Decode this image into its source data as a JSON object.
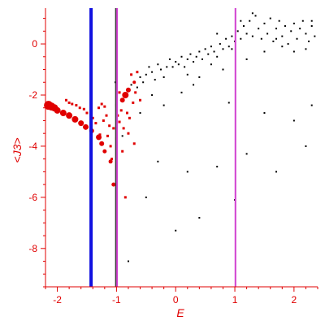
{
  "chart_data": {
    "type": "scatter",
    "title": "",
    "xlabel": "E",
    "ylabel": "<J3>",
    "xlim": [
      -2.2,
      2.4
    ],
    "ylim": [
      -9.5,
      1.4
    ],
    "grid": false,
    "axis_color": "#e00000",
    "x_ticks": [
      {
        "value": -2,
        "label": "-2"
      },
      {
        "value": -1,
        "label": "-1"
      },
      {
        "value": 0,
        "label": "0"
      },
      {
        "value": 1,
        "label": "1"
      },
      {
        "value": 2,
        "label": "2"
      }
    ],
    "y_ticks": [
      {
        "value": 0,
        "label": "0"
      },
      {
        "value": -2,
        "label": "-2"
      },
      {
        "value": -4,
        "label": "-4"
      },
      {
        "value": -6,
        "label": "-6"
      },
      {
        "value": -8,
        "label": "-8"
      }
    ],
    "vertical_lines": [
      {
        "x": -1.43,
        "color": "#1010e0"
      },
      {
        "x": -1.01,
        "color": "#3a3a3a"
      },
      {
        "x": -0.99,
        "color": "#d040d0"
      },
      {
        "x": 1.01,
        "color": "#d040d0"
      }
    ],
    "red_circles": [
      [
        -2.15,
        -2.4,
        5.5
      ],
      [
        -2.1,
        -2.45,
        5
      ],
      [
        -2.05,
        -2.5,
        4.5
      ],
      [
        -2.0,
        -2.6,
        4
      ],
      [
        -1.9,
        -2.7,
        4
      ],
      [
        -1.8,
        -2.8,
        4
      ],
      [
        -1.7,
        -2.95,
        4
      ],
      [
        -1.6,
        -3.1,
        3.5
      ],
      [
        -1.52,
        -3.25,
        3.5
      ],
      [
        -1.42,
        -3.4,
        3
      ],
      [
        -1.3,
        -3.65,
        3.5
      ],
      [
        -1.25,
        -3.9,
        3
      ],
      [
        -1.2,
        -4.2,
        2.5
      ],
      [
        -1.1,
        -4.6,
        2.5
      ],
      [
        -1.05,
        -5.5,
        2.5
      ],
      [
        -0.9,
        -2.2,
        3
      ],
      [
        -0.85,
        -2.0,
        4
      ],
      [
        -0.8,
        -1.8,
        3
      ],
      [
        -0.7,
        -1.5,
        2
      ]
    ],
    "red_squares": [
      [
        -1.85,
        -2.2
      ],
      [
        -1.8,
        -2.3
      ],
      [
        -1.75,
        -2.35
      ],
      [
        -1.68,
        -2.4
      ],
      [
        -1.62,
        -2.5
      ],
      [
        -1.55,
        -2.55
      ],
      [
        -1.5,
        -2.7
      ],
      [
        -1.4,
        -2.9
      ],
      [
        -1.35,
        -3.1
      ],
      [
        -1.3,
        -2.5
      ],
      [
        -1.25,
        -2.35
      ],
      [
        -1.2,
        -2.45
      ],
      [
        -1.15,
        -3.6
      ],
      [
        -1.12,
        -3.2
      ],
      [
        -1.1,
        -4.0
      ],
      [
        -1.05,
        -3.3
      ],
      [
        -1.0,
        -3.7
      ],
      [
        -0.98,
        -2.8
      ],
      [
        -0.95,
        -3.05
      ],
      [
        -0.92,
        -2.6
      ],
      [
        -0.88,
        -3.3
      ],
      [
        -0.82,
        -2.7
      ],
      [
        -0.8,
        -3.5
      ],
      [
        -0.78,
        -2.9
      ],
      [
        -0.75,
        -1.2
      ],
      [
        -0.72,
        -2.3
      ],
      [
        -0.7,
        -3.9
      ],
      [
        -0.68,
        -1.9
      ],
      [
        -0.65,
        -1.1
      ],
      [
        -0.6,
        -2.2
      ],
      [
        -0.95,
        -1.9
      ],
      [
        -1.08,
        -4.5
      ],
      [
        -0.85,
        -6.0
      ],
      [
        -1.28,
        -3.55
      ],
      [
        -1.22,
        -3.0
      ],
      [
        -0.9,
        -4.2
      ],
      [
        -1.17,
        -2.8
      ],
      [
        -1.0,
        -2.4
      ]
    ],
    "black_points": [
      [
        -1.02,
        -1.5
      ],
      [
        -1.0,
        -4.8
      ],
      [
        -0.9,
        -3.6
      ],
      [
        -0.75,
        -1.6
      ],
      [
        -0.65,
        -1.7
      ],
      [
        -0.6,
        -1.3
      ],
      [
        -0.55,
        -1.5
      ],
      [
        -0.5,
        -1.2
      ],
      [
        -0.45,
        -0.9
      ],
      [
        -0.4,
        -1.1
      ],
      [
        -0.35,
        -1.4
      ],
      [
        -0.3,
        -0.8
      ],
      [
        -0.25,
        -1.0
      ],
      [
        -0.2,
        -1.3
      ],
      [
        -0.15,
        -0.9
      ],
      [
        -0.1,
        -0.6
      ],
      [
        -0.05,
        -0.9
      ],
      [
        0.0,
        -0.7
      ],
      [
        0.05,
        -0.8
      ],
      [
        0.1,
        -0.5
      ],
      [
        0.15,
        -0.9
      ],
      [
        0.2,
        -0.6
      ],
      [
        0.25,
        -0.4
      ],
      [
        0.3,
        -0.7
      ],
      [
        0.35,
        -0.5
      ],
      [
        0.4,
        -0.3
      ],
      [
        0.45,
        -0.6
      ],
      [
        0.5,
        -0.2
      ],
      [
        0.55,
        -0.4
      ],
      [
        0.6,
        -0.1
      ],
      [
        0.65,
        -0.3
      ],
      [
        0.7,
        -0.5
      ],
      [
        0.75,
        0.0
      ],
      [
        0.8,
        -0.2
      ],
      [
        0.85,
        0.2
      ],
      [
        0.9,
        -0.1
      ],
      [
        0.95,
        0.3
      ],
      [
        1.0,
        0.1
      ],
      [
        1.05,
        0.5
      ],
      [
        1.1,
        0.2
      ],
      [
        1.15,
        0.7
      ],
      [
        1.2,
        0.4
      ],
      [
        1.25,
        0.9
      ],
      [
        1.3,
        0.3
      ],
      [
        1.35,
        1.1
      ],
      [
        1.4,
        0.6
      ],
      [
        1.45,
        0.2
      ],
      [
        1.5,
        0.8
      ],
      [
        1.55,
        0.4
      ],
      [
        1.6,
        1.0
      ],
      [
        1.65,
        0.1
      ],
      [
        1.7,
        0.6
      ],
      [
        1.75,
        0.9
      ],
      [
        1.8,
        0.3
      ],
      [
        1.85,
        0.7
      ],
      [
        1.9,
        0.0
      ],
      [
        1.95,
        0.5
      ],
      [
        2.0,
        0.8
      ],
      [
        2.05,
        0.2
      ],
      [
        2.1,
        0.6
      ],
      [
        2.15,
        0.9
      ],
      [
        2.2,
        0.4
      ],
      [
        2.25,
        0.1
      ],
      [
        2.3,
        0.7
      ],
      [
        2.35,
        0.3
      ],
      [
        0.2,
        -1.2
      ],
      [
        0.4,
        -1.3
      ],
      [
        0.6,
        -0.8
      ],
      [
        0.8,
        -1.0
      ],
      [
        1.2,
        -0.6
      ],
      [
        1.5,
        -0.3
      ],
      [
        1.8,
        -0.1
      ],
      [
        2.0,
        -0.3
      ],
      [
        2.2,
        -0.2
      ],
      [
        0.95,
        -0.2
      ],
      [
        1.1,
        0.9
      ],
      [
        1.3,
        1.2
      ],
      [
        1.7,
        0.2
      ],
      [
        2.3,
        0.9
      ],
      [
        0.7,
        0.4
      ],
      [
        -0.4,
        -2.0
      ],
      [
        -0.2,
        -2.4
      ],
      [
        0.1,
        -1.9
      ],
      [
        0.3,
        -1.6
      ],
      [
        -0.6,
        -2.7
      ],
      [
        -0.3,
        -4.6
      ],
      [
        0.2,
        -5.0
      ],
      [
        0.7,
        -4.8
      ],
      [
        1.2,
        -4.3
      ],
      [
        2.2,
        -4.0
      ],
      [
        -0.5,
        -6.0
      ],
      [
        0.4,
        -6.8
      ],
      [
        1.0,
        -6.1
      ],
      [
        -0.8,
        -8.5
      ],
      [
        0.0,
        -7.3
      ],
      [
        1.5,
        -2.7
      ],
      [
        2.0,
        -3.0
      ],
      [
        2.3,
        -2.4
      ],
      [
        0.9,
        -2.3
      ],
      [
        1.7,
        -5.0
      ]
    ]
  }
}
